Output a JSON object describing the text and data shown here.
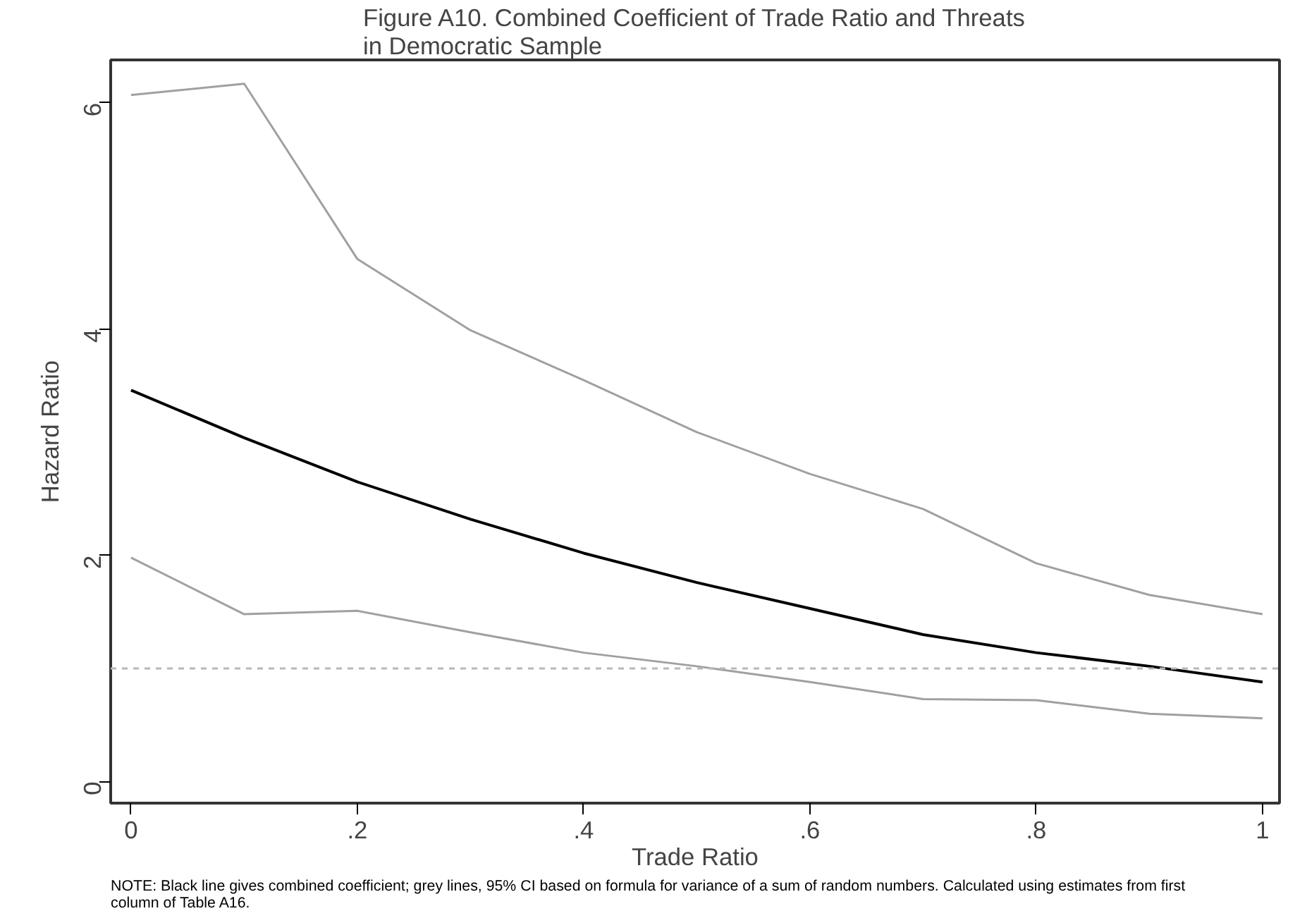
{
  "chart_data": {
    "type": "line",
    "title": "Figure A10. Combined Coefficient of Trade Ratio and Threats\nin Democratic Sample",
    "xlabel": "Trade Ratio",
    "ylabel": "Hazard Ratio",
    "x": [
      0,
      0.1,
      0.2,
      0.3,
      0.4,
      0.5,
      0.6,
      0.7,
      0.8,
      0.9,
      1
    ],
    "series": [
      {
        "color": "#a0a0a0",
        "values": [
          6.07,
          6.17,
          4.62,
          3.99,
          3.55,
          3.09,
          2.72,
          2.41,
          1.93,
          1.65,
          1.48
        ]
      },
      {
        "color": "#000000",
        "values": [
          3.46,
          3.04,
          2.65,
          2.32,
          2.02,
          1.76,
          1.53,
          1.3,
          1.14,
          1.02,
          0.88
        ]
      },
      {
        "color": "#a0a0a0",
        "values": [
          1.98,
          1.48,
          1.51,
          1.32,
          1.14,
          1.02,
          0.88,
          0.73,
          0.72,
          0.6,
          0.56
        ]
      }
    ],
    "ref_lines": [
      {
        "axis": "y",
        "value": 1,
        "color": "#b8b8b8",
        "line_style": "dashed"
      }
    ],
    "xlim": [
      -0.018,
      1.015
    ],
    "ylim": [
      -0.19,
      6.38
    ],
    "xticks": [
      0,
      {
        "value": 0.2,
        "label": ".2"
      },
      {
        "value": 0.4,
        "label": ".4"
      },
      {
        "value": 0.6,
        "label": ".6"
      },
      {
        "value": 0.8,
        "label": ".8"
      },
      1
    ],
    "yticks": [
      0,
      2,
      4,
      6
    ],
    "grid": false,
    "annotations": [
      "NOTE: Black line gives combined coefficient; grey lines, 95% CI based on formula for variance of a sum of random numbers. Calculated using estimates from first column of Table A16."
    ]
  }
}
